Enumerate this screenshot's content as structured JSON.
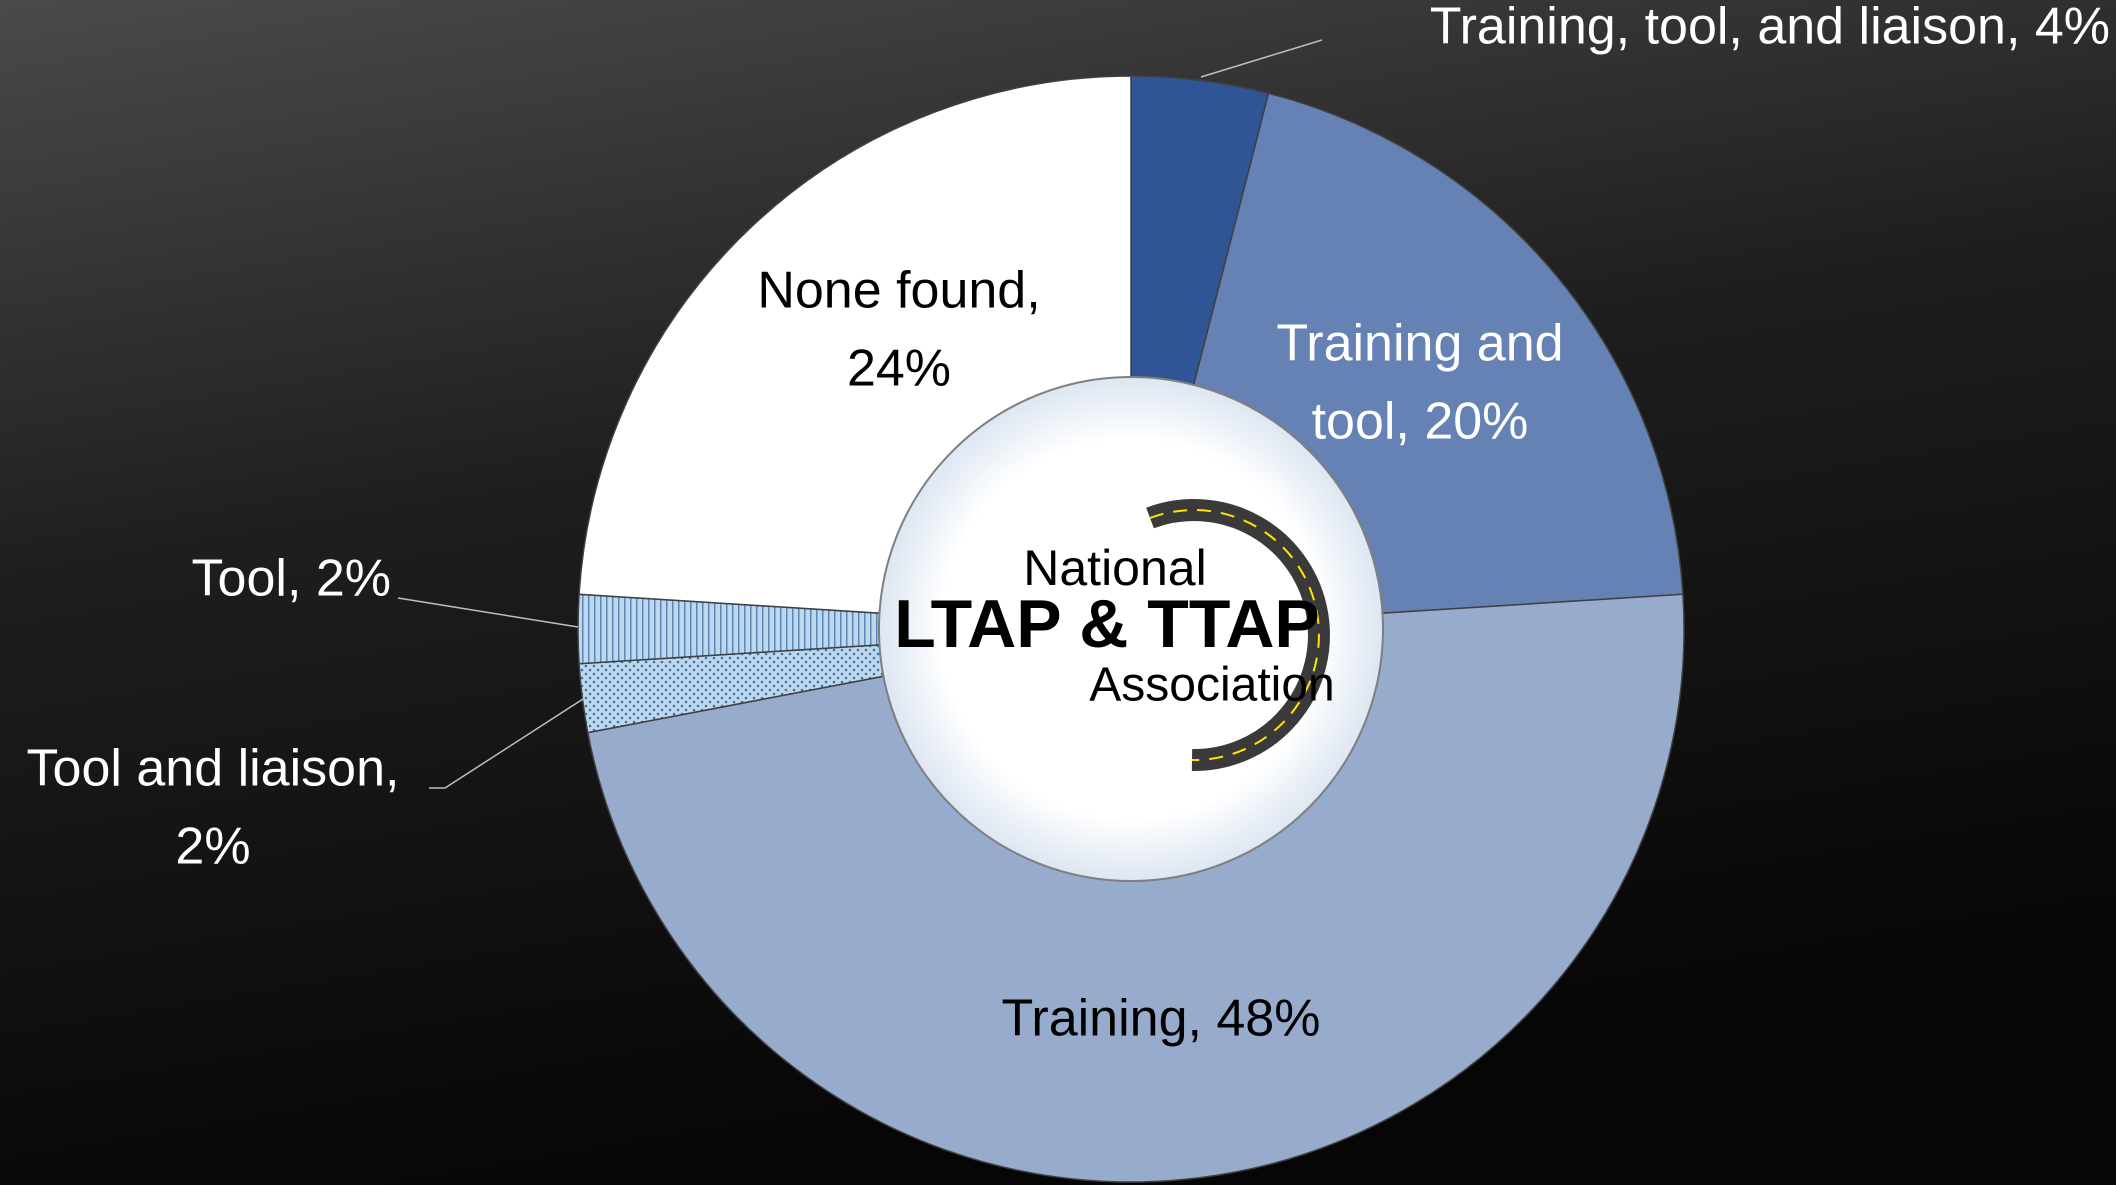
{
  "chart_data": {
    "type": "donut",
    "values": [
      4,
      20,
      48,
      2,
      2,
      24
    ],
    "value_labels": [
      [
        "Training, tool, and liaison, 4%"
      ],
      [
        "Training and",
        "tool, 20%"
      ],
      [
        "Training, 48%"
      ],
      [
        "Tool and liaison,",
        "2%"
      ],
      [
        "Tool, 2%"
      ],
      [
        "None found,",
        "24%"
      ]
    ],
    "colors": [
      "#2f5597",
      "#6682b4",
      "#97abcd",
      "#bdd7ee",
      "#bdd7ee",
      "#ffffff"
    ],
    "patterns": [
      null,
      null,
      null,
      "dots",
      "vertical-lines",
      null
    ],
    "center_text": [
      "National",
      "LTAP & TTAP",
      "Association"
    ]
  }
}
